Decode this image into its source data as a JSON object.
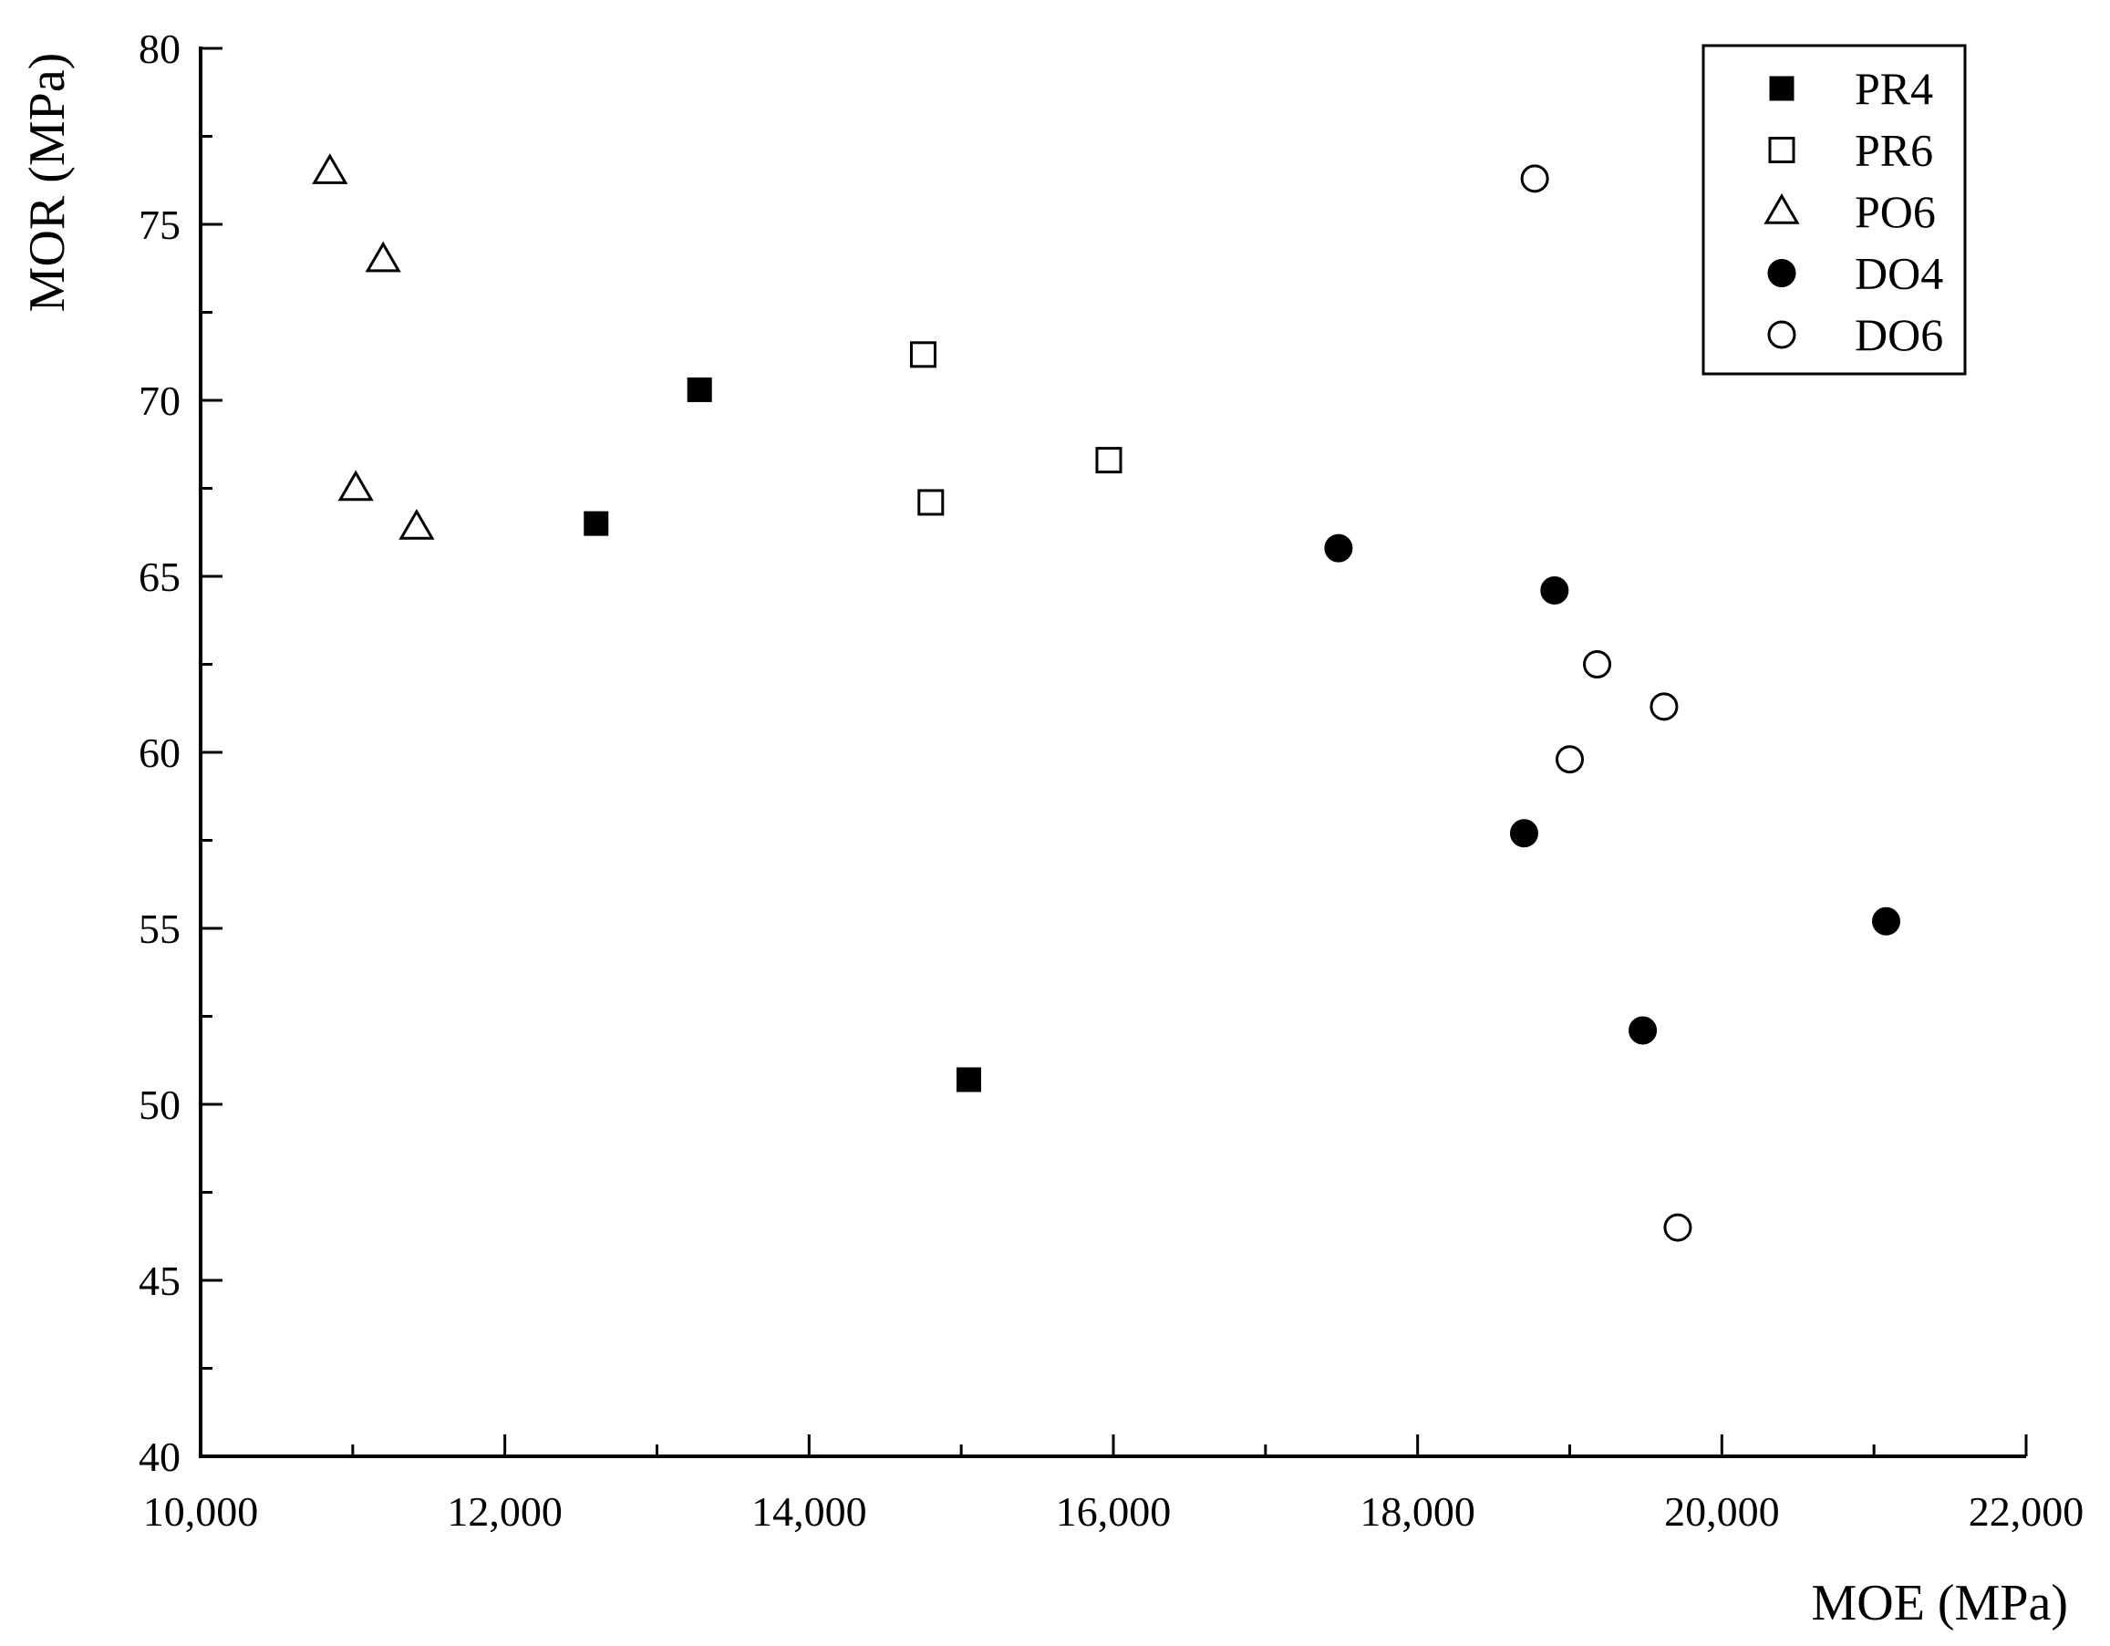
{
  "chart_data": {
    "type": "scatter",
    "xlabel": "MOE (MPa)",
    "ylabel": "MOR (MPa)",
    "xlim": [
      10000,
      22000
    ],
    "ylim": [
      40,
      80
    ],
    "x_ticks": [
      10000,
      12000,
      14000,
      16000,
      18000,
      20000,
      22000
    ],
    "x_tick_labels": [
      "10,000",
      "12,000",
      "14,000",
      "16,000",
      "18,000",
      "20,000",
      "22,000"
    ],
    "y_ticks": [
      40,
      45,
      50,
      55,
      60,
      65,
      70,
      75,
      80
    ],
    "y_tick_labels": [
      "40",
      "45",
      "50",
      "55",
      "60",
      "65",
      "70",
      "75",
      "80"
    ],
    "grid": false,
    "legend_position": "top-right",
    "series": [
      {
        "name": "PR4",
        "marker": "square",
        "filled": true,
        "points": [
          [
            12600,
            66.5
          ],
          [
            13280,
            70.3
          ],
          [
            15050,
            50.7
          ]
        ]
      },
      {
        "name": "PR6",
        "marker": "square",
        "filled": false,
        "points": [
          [
            14750,
            71.3
          ],
          [
            14800,
            67.1
          ],
          [
            15970,
            68.3
          ]
        ]
      },
      {
        "name": "PO6",
        "marker": "triangle",
        "filled": false,
        "points": [
          [
            10850,
            76.5
          ],
          [
            11200,
            74.0
          ],
          [
            11020,
            67.5
          ],
          [
            11420,
            66.4
          ]
        ]
      },
      {
        "name": "DO4",
        "marker": "circle",
        "filled": true,
        "points": [
          [
            17480,
            65.8
          ],
          [
            18900,
            64.6
          ],
          [
            18700,
            57.7
          ],
          [
            19480,
            52.1
          ],
          [
            21080,
            55.2
          ]
        ]
      },
      {
        "name": "DO6",
        "marker": "circle",
        "filled": false,
        "points": [
          [
            18770,
            76.3
          ],
          [
            19180,
            62.5
          ],
          [
            19620,
            61.3
          ],
          [
            19000,
            59.8
          ],
          [
            19710,
            46.5
          ]
        ]
      }
    ]
  }
}
